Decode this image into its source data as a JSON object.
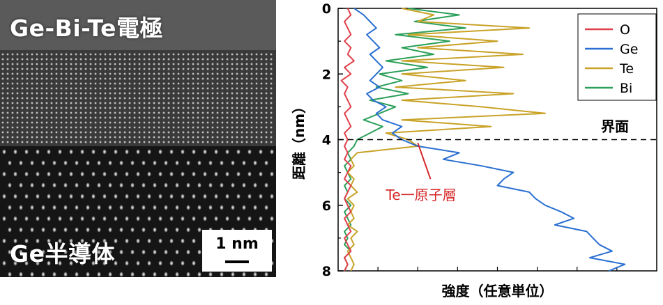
{
  "micrograph": {
    "top_label": "Ge-Bi-Te電極",
    "bottom_label": "Ge半導体",
    "scale_label": "1 nm"
  },
  "chart_data": {
    "type": "line",
    "xlabel": "強度（任意単位）",
    "ylabel": "距離（nm）",
    "ylim": [
      0,
      8
    ],
    "yticks": [
      0,
      2,
      4,
      6,
      8
    ],
    "y_inverted": true,
    "grid": false,
    "legend_position": "top-right",
    "interface_depth": 4.0,
    "interface_label": "界面",
    "annotation": {
      "text": "Te一原子層",
      "depth": 4.1,
      "color": "#d62728"
    },
    "series": [
      {
        "name": "O",
        "color": "#e0404a",
        "y": [
          0.0,
          0.2,
          0.4,
          0.6,
          0.8,
          1.0,
          1.2,
          1.4,
          1.6,
          1.8,
          2.0,
          2.2,
          2.4,
          2.6,
          2.8,
          3.0,
          3.2,
          3.4,
          3.6,
          3.8,
          4.0,
          4.2,
          4.4,
          4.6,
          4.8,
          5.0,
          5.2,
          5.4,
          5.6,
          5.8,
          6.0,
          6.2,
          6.4,
          6.6,
          6.8,
          7.0,
          7.2,
          7.4,
          7.6,
          7.8,
          8.0
        ],
        "values": [
          0.03,
          0.04,
          0.02,
          0.03,
          0.04,
          0.02,
          0.04,
          0.03,
          0.05,
          0.02,
          0.04,
          0.01,
          0.03,
          0.02,
          0.03,
          0.04,
          0.02,
          0.03,
          0.04,
          0.02,
          0.03,
          0.02,
          0.03,
          0.02,
          0.04,
          0.03,
          0.02,
          0.04,
          0.03,
          0.02,
          0.03,
          0.04,
          0.02,
          0.03,
          0.04,
          0.02,
          0.03,
          0.04,
          0.02,
          0.03,
          0.02
        ]
      },
      {
        "name": "Ge",
        "color": "#2a6fd1",
        "y": [
          0.0,
          0.2,
          0.4,
          0.6,
          0.8,
          1.0,
          1.2,
          1.4,
          1.6,
          1.8,
          2.0,
          2.2,
          2.4,
          2.6,
          2.8,
          3.0,
          3.2,
          3.4,
          3.6,
          3.8,
          4.0,
          4.2,
          4.4,
          4.6,
          4.8,
          5.0,
          5.2,
          5.4,
          5.6,
          5.8,
          6.0,
          6.2,
          6.4,
          6.6,
          6.8,
          7.0,
          7.2,
          7.4,
          7.6,
          7.8,
          8.0
        ],
        "values": [
          0.05,
          0.08,
          0.1,
          0.12,
          0.09,
          0.11,
          0.13,
          0.1,
          0.12,
          0.14,
          0.12,
          0.1,
          0.13,
          0.09,
          0.11,
          0.15,
          0.12,
          0.14,
          0.2,
          0.17,
          0.2,
          0.25,
          0.38,
          0.33,
          0.45,
          0.55,
          0.52,
          0.5,
          0.6,
          0.62,
          0.65,
          0.7,
          0.74,
          0.68,
          0.78,
          0.8,
          0.82,
          0.86,
          0.79,
          0.9,
          0.85
        ]
      },
      {
        "name": "Te",
        "color": "#c9a227",
        "y": [
          0.0,
          0.2,
          0.4,
          0.6,
          0.8,
          1.0,
          1.2,
          1.4,
          1.6,
          1.8,
          2.0,
          2.2,
          2.4,
          2.6,
          2.8,
          3.0,
          3.2,
          3.4,
          3.6,
          3.8,
          4.0,
          4.2,
          4.4,
          4.6,
          4.8,
          5.0,
          5.2,
          5.4,
          5.6,
          5.8,
          6.0,
          6.2,
          6.4,
          6.6,
          6.8,
          7.0,
          7.2,
          7.4,
          7.6,
          7.8,
          8.0
        ],
        "values": [
          0.2,
          0.3,
          0.25,
          0.6,
          0.22,
          0.5,
          0.25,
          0.58,
          0.2,
          0.52,
          0.2,
          0.4,
          0.18,
          0.55,
          0.2,
          0.45,
          0.65,
          0.2,
          0.48,
          0.15,
          0.22,
          0.25,
          0.06,
          0.04,
          0.05,
          0.03,
          0.05,
          0.04,
          0.06,
          0.03,
          0.05,
          0.04,
          0.05,
          0.03,
          0.06,
          0.04,
          0.05,
          0.03,
          0.04,
          0.05,
          0.04
        ]
      },
      {
        "name": "Bi",
        "color": "#2ca05a",
        "y": [
          0.0,
          0.2,
          0.4,
          0.6,
          0.8,
          1.0,
          1.2,
          1.4,
          1.6,
          1.8,
          2.0,
          2.2,
          2.4,
          2.6,
          2.8,
          3.0,
          3.2,
          3.4,
          3.6,
          3.8,
          4.0,
          4.2,
          4.4,
          4.6,
          4.8,
          5.0,
          5.2,
          5.4,
          5.6,
          5.8,
          6.0,
          6.2,
          6.4,
          6.6,
          6.8,
          7.0,
          7.2,
          7.4,
          7.6,
          7.8,
          8.0
        ],
        "values": [
          0.22,
          0.38,
          0.24,
          0.4,
          0.18,
          0.35,
          0.2,
          0.3,
          0.15,
          0.28,
          0.13,
          0.2,
          0.12,
          0.22,
          0.1,
          0.18,
          0.13,
          0.08,
          0.14,
          0.1,
          0.06,
          0.05,
          0.03,
          0.04,
          0.02,
          0.03,
          0.04,
          0.02,
          0.03,
          0.02,
          0.04,
          0.02,
          0.03,
          0.04,
          0.02,
          0.03,
          0.02,
          0.04,
          0.02,
          0.03,
          0.02
        ]
      }
    ]
  }
}
